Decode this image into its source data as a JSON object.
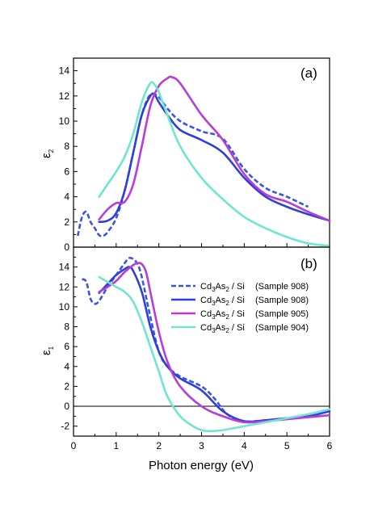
{
  "chart_data": [
    {
      "type": "line",
      "panel_label": "(a)",
      "ylabel": "ε",
      "ylabel_subscript": "2",
      "xlim": [
        0,
        6
      ],
      "ylim": [
        0,
        15
      ],
      "yticks": [
        0,
        2,
        4,
        6,
        8,
        10,
        12,
        14
      ],
      "grid": false,
      "zero_line": false,
      "series": [
        {
          "color": "#3a55e0",
          "dash": true,
          "x": [
            0.1,
            0.2,
            0.3,
            0.4,
            0.5,
            0.6,
            0.7,
            0.8,
            1.0,
            1.2,
            1.4,
            1.6,
            1.8,
            2.0,
            2.2,
            2.5,
            3.0,
            3.5,
            4.0,
            4.5,
            5.0,
            5.5
          ],
          "y": [
            0.9,
            2.4,
            2.8,
            2.0,
            1.5,
            0.95,
            0.9,
            1.2,
            2.3,
            4.5,
            7.5,
            10.5,
            12.1,
            11.9,
            11.0,
            10.0,
            9.2,
            8.6,
            6.2,
            4.7,
            4.0,
            3.2
          ]
        },
        {
          "color": "#2f3fd8",
          "dash": false,
          "x": [
            0.6,
            0.8,
            1.0,
            1.2,
            1.4,
            1.6,
            1.8,
            1.9,
            2.0,
            2.2,
            2.5,
            3.0,
            3.5,
            4.0,
            4.5,
            5.0,
            5.5,
            6.0
          ],
          "y": [
            2.0,
            2.1,
            2.7,
            4.5,
            7.5,
            10.5,
            12.0,
            12.1,
            11.5,
            10.5,
            9.3,
            8.5,
            7.5,
            5.5,
            4.0,
            3.2,
            2.6,
            2.1
          ]
        },
        {
          "color": "#b93bd8",
          "dash": false,
          "x": [
            0.6,
            0.8,
            1.0,
            1.2,
            1.4,
            1.6,
            1.8,
            2.0,
            2.2,
            2.3,
            2.5,
            3.0,
            3.5,
            4.0,
            4.5,
            5.0,
            5.5,
            6.0
          ],
          "y": [
            2.2,
            3.0,
            3.5,
            3.6,
            5.0,
            8.0,
            11.2,
            12.8,
            13.4,
            13.5,
            13.0,
            10.5,
            8.5,
            5.8,
            4.2,
            3.6,
            2.8,
            2.1
          ]
        },
        {
          "color": "#6fe6cf",
          "dash": false,
          "x": [
            0.6,
            0.8,
            1.0,
            1.2,
            1.4,
            1.6,
            1.8,
            1.9,
            2.0,
            2.2,
            2.5,
            3.0,
            3.5,
            4.0,
            4.5,
            5.0,
            5.5,
            6.0
          ],
          "y": [
            4.0,
            5.0,
            6.0,
            7.2,
            9.0,
            11.5,
            13.0,
            12.9,
            12.3,
            10.5,
            8.0,
            5.5,
            3.8,
            2.4,
            1.5,
            0.8,
            0.3,
            0.1
          ]
        }
      ]
    },
    {
      "type": "line",
      "panel_label": "(b)",
      "xlabel": "Photon energy (eV)",
      "ylabel": "ε",
      "ylabel_subscript": "1",
      "xlim": [
        0,
        6
      ],
      "ylim": [
        -3,
        16
      ],
      "xticks": [
        0,
        1,
        2,
        3,
        4,
        5,
        6
      ],
      "yticks": [
        -2,
        0,
        2,
        4,
        6,
        8,
        10,
        12,
        14
      ],
      "grid": false,
      "zero_line": true,
      "legend_position": "right",
      "series": [
        {
          "name_main": "Cd",
          "name_sub1": "3",
          "name_mid": "As",
          "name_sub2": "2",
          "name_end": " / Si",
          "sample": "(Sample 908)",
          "color": "#3a55e0",
          "dash": true,
          "x": [
            0.2,
            0.3,
            0.4,
            0.5,
            0.6,
            0.8,
            1.0,
            1.2,
            1.3,
            1.4,
            1.5,
            1.6,
            1.8,
            2.0,
            2.2,
            2.5,
            3.0,
            3.3,
            3.6,
            4.0,
            4.5,
            5.0,
            5.5
          ],
          "y": [
            12.8,
            12.5,
            10.8,
            10.3,
            10.6,
            12.0,
            13.2,
            14.4,
            14.9,
            14.8,
            14.3,
            13.0,
            9.0,
            5.5,
            4.0,
            3.0,
            2.0,
            0.8,
            -0.8,
            -1.5,
            -1.4,
            -1.2,
            -1.0
          ]
        },
        {
          "name_main": "Cd",
          "name_sub1": "3",
          "name_mid": "As",
          "name_sub2": "2",
          "name_end": " / Si",
          "sample": "(Sample 908)",
          "color": "#2f3fd8",
          "dash": false,
          "x": [
            0.6,
            0.8,
            1.0,
            1.2,
            1.3,
            1.4,
            1.6,
            1.8,
            2.0,
            2.2,
            2.5,
            3.0,
            3.5,
            4.0,
            4.5,
            5.0,
            5.5,
            6.0
          ],
          "y": [
            11.4,
            12.3,
            13.2,
            13.8,
            14.0,
            13.6,
            11.5,
            8.0,
            5.5,
            4.0,
            2.8,
            1.6,
            -0.5,
            -1.5,
            -1.4,
            -1.2,
            -1.0,
            -0.5
          ]
        },
        {
          "name_main": "Cd",
          "name_sub1": "3",
          "name_mid": "As",
          "name_sub2": "2",
          "name_end": " / Si",
          "sample": "(Sample 905)",
          "color": "#b93bd8",
          "dash": false,
          "x": [
            0.6,
            0.8,
            1.0,
            1.2,
            1.4,
            1.5,
            1.6,
            1.7,
            1.8,
            2.0,
            2.2,
            2.5,
            3.0,
            3.5,
            4.0,
            4.5,
            5.0,
            5.5,
            6.0
          ],
          "y": [
            11.5,
            12.0,
            12.6,
            13.5,
            14.2,
            14.4,
            14.3,
            13.5,
            11.5,
            7.5,
            4.5,
            2.0,
            0.0,
            -1.0,
            -1.6,
            -1.5,
            -1.3,
            -1.1,
            -0.9
          ]
        },
        {
          "name_main": "Cd",
          "name_sub1": "3",
          "name_mid": "As",
          "name_sub2": "2",
          "name_end": " / Si",
          "sample": "(Sample 904)",
          "color": "#6fe6cf",
          "dash": false,
          "x": [
            0.6,
            0.8,
            1.0,
            1.2,
            1.4,
            1.6,
            1.8,
            2.0,
            2.2,
            2.5,
            2.8,
            3.0,
            3.2,
            3.5,
            4.0,
            4.5,
            5.0,
            5.5,
            6.0
          ],
          "y": [
            13.0,
            12.5,
            12.0,
            11.5,
            10.5,
            8.5,
            6.0,
            3.5,
            1.0,
            -1.0,
            -2.0,
            -2.4,
            -2.5,
            -2.4,
            -2.0,
            -1.6,
            -1.2,
            -0.8,
            -0.3
          ]
        }
      ]
    }
  ]
}
